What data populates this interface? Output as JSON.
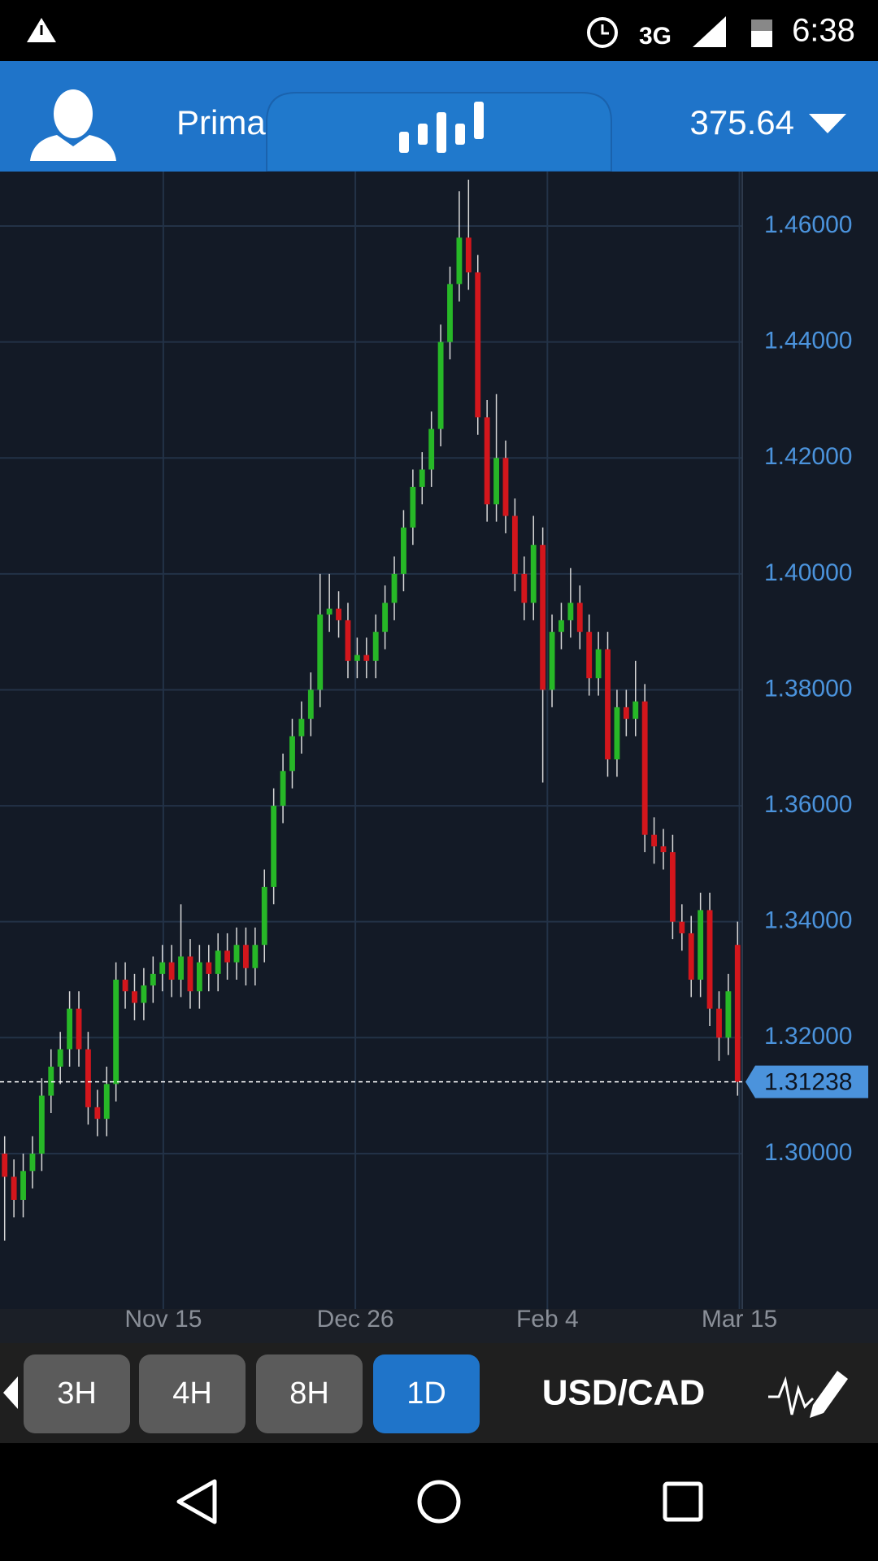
{
  "status_bar": {
    "network": "3G",
    "time": "6:38"
  },
  "header": {
    "account": "Prima",
    "balance": "375.64"
  },
  "chart_data": {
    "type": "candlestick",
    "open": [
      1.3,
      1.296,
      1.292,
      1.297,
      1.3,
      1.31,
      1.315,
      1.318,
      1.325,
      1.318,
      1.308,
      1.306,
      1.312,
      1.33,
      1.328,
      1.326,
      1.329,
      1.331,
      1.333,
      1.33,
      1.334,
      1.328,
      1.333,
      1.331,
      1.335,
      1.333,
      1.336,
      1.332,
      1.336,
      1.346,
      1.36,
      1.366,
      1.372,
      1.375,
      1.38,
      1.393,
      1.394,
      1.392,
      1.385,
      1.386,
      1.385,
      1.39,
      1.395,
      1.4,
      1.408,
      1.415,
      1.418,
      1.425,
      1.44,
      1.45,
      1.458,
      1.452,
      1.427,
      1.412,
      1.42,
      1.41,
      1.4,
      1.395,
      1.405,
      1.38,
      1.39,
      1.392,
      1.395,
      1.39,
      1.382,
      1.387,
      1.368,
      1.377,
      1.375,
      1.378,
      1.355,
      1.353,
      1.352,
      1.34,
      1.338,
      1.33,
      1.342,
      1.325,
      1.32,
      1.336
    ],
    "high": [
      1.303,
      1.299,
      1.3,
      1.303,
      1.313,
      1.318,
      1.321,
      1.328,
      1.328,
      1.321,
      1.311,
      1.315,
      1.333,
      1.333,
      1.331,
      1.332,
      1.334,
      1.336,
      1.336,
      1.343,
      1.337,
      1.336,
      1.336,
      1.338,
      1.338,
      1.339,
      1.339,
      1.339,
      1.349,
      1.363,
      1.369,
      1.375,
      1.378,
      1.383,
      1.4,
      1.4,
      1.397,
      1.395,
      1.389,
      1.389,
      1.393,
      1.398,
      1.403,
      1.411,
      1.418,
      1.421,
      1.428,
      1.443,
      1.453,
      1.466,
      1.468,
      1.455,
      1.43,
      1.431,
      1.423,
      1.413,
      1.403,
      1.41,
      1.408,
      1.393,
      1.395,
      1.401,
      1.398,
      1.393,
      1.39,
      1.39,
      1.38,
      1.38,
      1.385,
      1.381,
      1.358,
      1.356,
      1.355,
      1.343,
      1.341,
      1.345,
      1.345,
      1.328,
      1.331,
      1.34
    ],
    "low": [
      1.285,
      1.289,
      1.289,
      1.294,
      1.297,
      1.307,
      1.312,
      1.315,
      1.315,
      1.305,
      1.303,
      1.303,
      1.309,
      1.325,
      1.323,
      1.323,
      1.326,
      1.328,
      1.327,
      1.327,
      1.325,
      1.325,
      1.328,
      1.328,
      1.33,
      1.33,
      1.329,
      1.329,
      1.333,
      1.343,
      1.357,
      1.363,
      1.369,
      1.372,
      1.377,
      1.39,
      1.389,
      1.382,
      1.382,
      1.382,
      1.382,
      1.387,
      1.392,
      1.397,
      1.405,
      1.412,
      1.415,
      1.422,
      1.437,
      1.447,
      1.449,
      1.424,
      1.409,
      1.409,
      1.407,
      1.397,
      1.392,
      1.392,
      1.364,
      1.377,
      1.387,
      1.389,
      1.387,
      1.379,
      1.379,
      1.365,
      1.365,
      1.372,
      1.372,
      1.352,
      1.35,
      1.349,
      1.337,
      1.335,
      1.327,
      1.327,
      1.322,
      1.316,
      1.317,
      1.31
    ],
    "close": [
      1.296,
      1.292,
      1.297,
      1.3,
      1.31,
      1.315,
      1.318,
      1.325,
      1.318,
      1.308,
      1.306,
      1.312,
      1.33,
      1.328,
      1.326,
      1.329,
      1.331,
      1.333,
      1.33,
      1.334,
      1.328,
      1.333,
      1.331,
      1.335,
      1.333,
      1.336,
      1.332,
      1.336,
      1.346,
      1.36,
      1.366,
      1.372,
      1.375,
      1.38,
      1.393,
      1.394,
      1.392,
      1.385,
      1.386,
      1.385,
      1.39,
      1.395,
      1.4,
      1.408,
      1.415,
      1.418,
      1.425,
      1.44,
      1.45,
      1.458,
      1.452,
      1.427,
      1.412,
      1.42,
      1.41,
      1.4,
      1.395,
      1.405,
      1.38,
      1.39,
      1.392,
      1.395,
      1.39,
      1.382,
      1.387,
      1.368,
      1.377,
      1.375,
      1.378,
      1.355,
      1.353,
      1.352,
      1.34,
      1.338,
      1.33,
      1.342,
      1.325,
      1.32,
      1.328,
      1.31238
    ],
    "up_color": "#27b827",
    "down_color": "#d3161c",
    "ylim": [
      1.2732,
      1.4694
    ],
    "yticks": [
      {
        "value": 1.3,
        "label": "1.30000"
      },
      {
        "value": 1.32,
        "label": "1.32000"
      },
      {
        "value": 1.34,
        "label": "1.34000"
      },
      {
        "value": 1.36,
        "label": "1.36000"
      },
      {
        "value": 1.38,
        "label": "1.38000"
      },
      {
        "value": 1.4,
        "label": "1.40000"
      },
      {
        "value": 1.42,
        "label": "1.42000"
      },
      {
        "value": 1.44,
        "label": "1.44000"
      },
      {
        "value": 1.46,
        "label": "1.46000"
      }
    ],
    "xlim": [
      0,
      80
    ],
    "xticks": [
      {
        "value": 17.6,
        "label": "Nov 15"
      },
      {
        "value": 38.3,
        "label": "Dec 26"
      },
      {
        "value": 59.0,
        "label": "Feb 4"
      },
      {
        "value": 79.7,
        "label": "Mar 15"
      }
    ],
    "grid": true
  },
  "toolbar": {
    "timeframes": [
      "3H",
      "4H",
      "8H",
      "1D"
    ],
    "selected": 3,
    "symbol": "USD/CAD"
  }
}
